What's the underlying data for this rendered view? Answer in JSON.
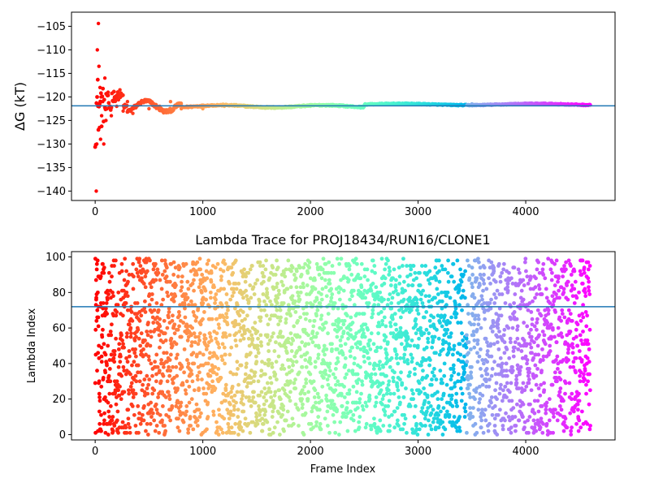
{
  "chart_data": [
    {
      "type": "scatter",
      "title": "",
      "xlabel": "",
      "ylabel": "ΔG (kT)",
      "xlim": [
        -220,
        4830
      ],
      "ylim": [
        -142,
        -102
      ],
      "xticks": [
        0,
        1000,
        2000,
        3000,
        4000
      ],
      "yticks": [
        -140,
        -135,
        -130,
        -125,
        -120,
        -115,
        -110,
        -105
      ],
      "xtick_labels": [
        "0",
        "1000",
        "2000",
        "3000",
        "4000"
      ],
      "ytick_labels": [
        "−140",
        "−135",
        "−130",
        "−125",
        "−120",
        "−115",
        "−110",
        "−105"
      ],
      "hline": {
        "y": -121.9,
        "color": "#1f77b4"
      },
      "colormap": "rainbow (red at frame 0 → violet at last frame)",
      "series": [
        {
          "x": [
            10,
            15,
            20,
            25,
            30,
            35,
            40,
            45,
            50,
            55,
            60,
            70,
            80,
            90,
            100,
            120,
            150,
            180,
            200,
            230,
            260,
            300,
            350,
            400,
            500,
            600,
            700,
            800,
            1000,
            1200,
            1500,
            2000,
            2500,
            3000,
            3500,
            4000,
            4600
          ],
          "y": [
            -140,
            -130,
            -110,
            -122,
            -104.4,
            -113.5,
            -126.5,
            -118,
            -129,
            -120,
            -124,
            -121,
            -130,
            -116,
            -125,
            -119,
            -124,
            -120,
            -122,
            -118.5,
            -123,
            -121,
            -123.5,
            -121.5,
            -122.5,
            -122,
            -121,
            -122.5,
            -122.5,
            -122,
            -122,
            -122,
            -122,
            -121.5,
            -121.5,
            -121.5,
            -121.7
          ]
        }
      ],
      "grid": false,
      "legend": "none"
    },
    {
      "type": "scatter",
      "title": "Lambda Trace for PROJ18434/RUN16/CLONE1",
      "xlabel": "Frame Index",
      "ylabel": "Lambda Index",
      "xlim": [
        -220,
        4830
      ],
      "ylim": [
        -3,
        103
      ],
      "xticks": [
        0,
        1000,
        2000,
        3000,
        4000
      ],
      "yticks": [
        0,
        20,
        40,
        60,
        80,
        100
      ],
      "xtick_labels": [
        "0",
        "1000",
        "2000",
        "3000",
        "4000"
      ],
      "ytick_labels": [
        "0",
        "20",
        "40",
        "60",
        "80",
        "100"
      ],
      "hline": {
        "y": 72,
        "color": "#1f77b4"
      },
      "colormap": "rainbow (red at frame 0 → violet at last frame)",
      "frame_range": [
        0,
        4600
      ],
      "lambda_range": [
        0,
        99
      ],
      "grid": false,
      "legend": "none"
    }
  ]
}
